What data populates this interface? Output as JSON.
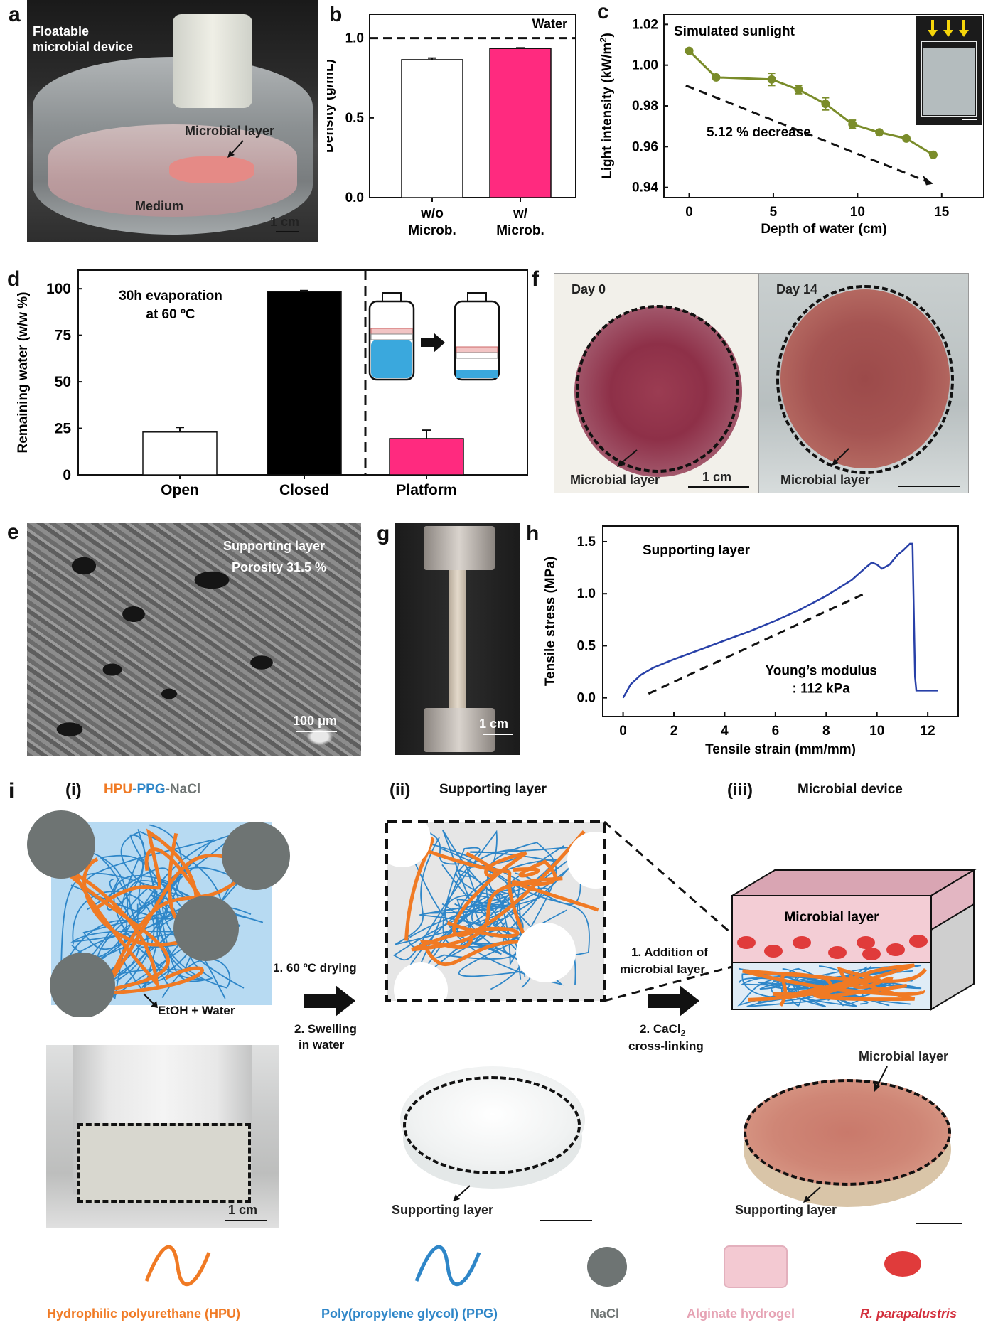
{
  "panel_letters": {
    "a": "a",
    "b": "b",
    "c": "c",
    "d": "d",
    "e": "e",
    "f": "f",
    "g": "g",
    "h": "h",
    "i": "i"
  },
  "panel_a": {
    "title_line1": "Floatable",
    "title_line2": "microbial device",
    "microbial_layer": "Microbial layer",
    "medium": "Medium",
    "scale": "1 cm"
  },
  "chart_b": {
    "type": "bar",
    "categories": [
      [
        "w/o",
        "Microb."
      ],
      [
        "w/",
        "Microb."
      ]
    ],
    "values": [
      0.865,
      0.935
    ],
    "errors": [
      0.01,
      0.004
    ],
    "colors": [
      "#ffffff",
      "#ff2a7f"
    ],
    "ylabel": "Density (g/mL)",
    "yticks": [
      "0.0",
      "0.5",
      "1.0"
    ],
    "ylim": [
      0,
      1.15
    ],
    "reference_line": {
      "value": 1.0,
      "label": "Water"
    }
  },
  "chart_c": {
    "type": "line",
    "x": [
      0,
      1.6,
      4.9,
      6.5,
      8.1,
      9.7,
      11.3,
      12.9,
      14.5
    ],
    "y": [
      1.007,
      0.994,
      0.993,
      0.988,
      0.981,
      0.971,
      0.967,
      0.964,
      0.956
    ],
    "errors": [
      0,
      0,
      0.003,
      0.002,
      0.003,
      0.002,
      0,
      0,
      0
    ],
    "color": "#7a8c2a",
    "xlabel": "Depth of water (cm)",
    "ylabel_main": "Light intensity (kW/m",
    "ylabel_sup": "2",
    "ylabel_end": ")",
    "xticks": [
      "0",
      "5",
      "10",
      "15"
    ],
    "yticks": [
      "0.94",
      "0.96",
      "0.98",
      "1.00",
      "1.02"
    ],
    "xlim": [
      -1.5,
      17.5
    ],
    "ylim": [
      0.935,
      1.025
    ],
    "annotation_title": "Simulated sunlight",
    "annotation_trend": "5.12 % decrease"
  },
  "chart_d": {
    "type": "bar",
    "categories": [
      "Open",
      "Closed",
      "Platform"
    ],
    "values": [
      23,
      98.5,
      19.5
    ],
    "errors": [
      2.5,
      0.5,
      4.5
    ],
    "colors": [
      "#ffffff",
      "#000000",
      "#ff2a7f"
    ],
    "ylabel": "Remaining water (w/w %)",
    "yticks": [
      "0",
      "25",
      "50",
      "75",
      "100"
    ],
    "ylim": [
      0,
      110
    ],
    "annotation_line1": "30h evaporation",
    "annotation_line2": "at 60 ºC"
  },
  "panel_e": {
    "title": "Supporting layer",
    "porosity": "Porosity 31.5 %",
    "scale": "100 μm"
  },
  "panel_f": {
    "day0": "Day 0",
    "day14": "Day 14",
    "layer_left": "Microbial layer",
    "layer_right": "Microbial layer",
    "scale": "1 cm"
  },
  "panel_g": {
    "scale": "1 cm"
  },
  "chart_h": {
    "type": "line",
    "color": "#2840a8",
    "xlabel": "Tensile strain (mm/mm)",
    "ylabel": "Tensile stress (MPa)",
    "xticks": [
      "0",
      "2",
      "4",
      "6",
      "8",
      "10",
      "12"
    ],
    "yticks": [
      "0.0",
      "0.5",
      "1.0",
      "1.5"
    ],
    "xlim": [
      -0.8,
      13.2
    ],
    "ylim": [
      -0.18,
      1.65
    ],
    "annotation_title": "Supporting layer",
    "annotation_line1": "Young’s modulus",
    "annotation_line2": ": 112 kPa",
    "points": [
      [
        0,
        0
      ],
      [
        0.3,
        0.13
      ],
      [
        0.7,
        0.22
      ],
      [
        1.2,
        0.29
      ],
      [
        2,
        0.37
      ],
      [
        3,
        0.46
      ],
      [
        4,
        0.55
      ],
      [
        5,
        0.64
      ],
      [
        6,
        0.74
      ],
      [
        7,
        0.85
      ],
      [
        8,
        0.98
      ],
      [
        9,
        1.13
      ],
      [
        9.6,
        1.26
      ],
      [
        9.8,
        1.3
      ],
      [
        10,
        1.28
      ],
      [
        10.2,
        1.24
      ],
      [
        10.5,
        1.28
      ],
      [
        10.8,
        1.37
      ],
      [
        11.05,
        1.42
      ],
      [
        11.3,
        1.48
      ],
      [
        11.4,
        1.48
      ],
      [
        11.5,
        0.2
      ],
      [
        11.55,
        0.07
      ],
      [
        12,
        0.07
      ],
      [
        12.4,
        0.07
      ]
    ]
  },
  "panel_i": {
    "step1_label": "(i)",
    "step1_hpu": "HPU",
    "step1_dash1": "-",
    "step1_ppg": "PPG",
    "step1_dash2": "-",
    "step1_nacl": "NaCl",
    "etoh": "EtOH + Water",
    "step2_label": "(ii)",
    "step2_title": "Supporting layer",
    "step3_label": "(iii)",
    "step3_title": "Microbial device",
    "arrow1_line1": "1. 60 ºC drying",
    "arrow1_line2": "2. Swelling",
    "arrow1_line3": "in water",
    "arrow2_line1": "1. Addition of",
    "arrow2_line2": "microbial layer",
    "arrow2_line3": "2. CaCl",
    "arrow2_sub": "2",
    "arrow2_line4": "cross-linking",
    "device_top": "Microbial layer",
    "device_bottom": "Supporting layer",
    "photo1_scale": "1 cm",
    "photo2_label": "Supporting layer",
    "photo3_label_top": "Microbial layer",
    "photo3_label_bottom": "Supporting layer"
  },
  "legend": {
    "hpu": "Hydrophilic polyurethane (HPU)",
    "ppg": "Poly(propylene glycol) (PPG)",
    "nacl": "NaCl",
    "alginate": "Alginate hydrogel",
    "bacteria": "R. parapalustris"
  },
  "colors": {
    "orange": "#f07a24",
    "blue": "#2e86c8",
    "gray": "#6e7473",
    "pink": "#ff2a7f",
    "alginate": "#e6a3b4",
    "bacteria": "#e03b3b"
  }
}
